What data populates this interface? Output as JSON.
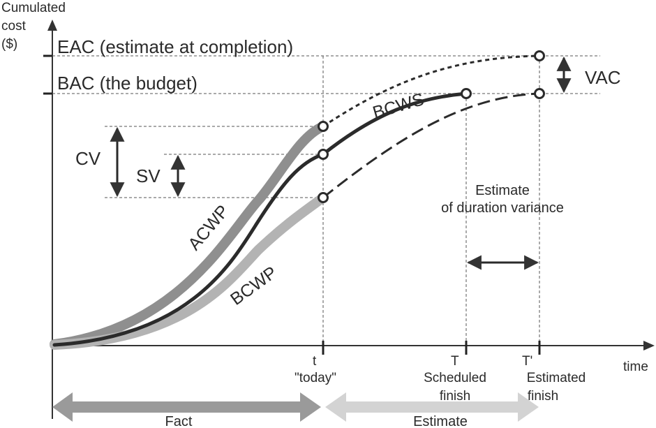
{
  "axes": {
    "y_label_lines": [
      "Cumulated",
      "cost",
      "($)"
    ],
    "x_label": "time"
  },
  "levels": {
    "eac": "EAC (estimate at completion)",
    "bac": "BAC (the budget)"
  },
  "curves": {
    "bcws": "BCWS",
    "acwp": "ACWP",
    "bcwp": "BCWP"
  },
  "variances": {
    "cv": "CV",
    "sv": "SV",
    "vac": "VAC"
  },
  "duration_note": [
    "Estimate",
    "of duration variance"
  ],
  "time_marks": {
    "today": {
      "symbol": "t",
      "caption": [
        "\"today\""
      ]
    },
    "scheduled": {
      "symbol": "T",
      "caption": [
        "Scheduled",
        "finish"
      ]
    },
    "estimated": {
      "symbol": "T'",
      "caption": [
        "Estimated",
        "finish"
      ]
    }
  },
  "bands": {
    "fact": "Fact",
    "estimate": "Estimate"
  },
  "colors": {
    "bcws": "#2b2b2b",
    "acwp": "#8f8f8f",
    "bcwp": "#b3b3b3",
    "fact_arrow": "#9a9a9a",
    "estimate_arrow": "#d3d3d3"
  }
}
